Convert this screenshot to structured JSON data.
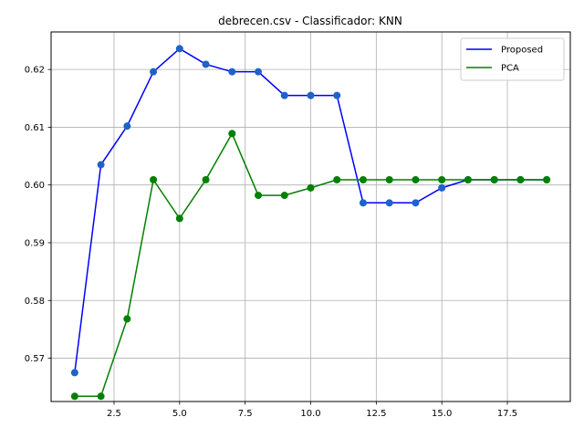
{
  "chart_data": {
    "type": "line",
    "title": "debrecen.csv - Classificador: KNN",
    "xlabel": "",
    "ylabel": "",
    "xlim": [
      0.1,
      19.9
    ],
    "ylim": [
      0.5625,
      0.6265
    ],
    "x_ticks": [
      2.5,
      5.0,
      7.5,
      10.0,
      12.5,
      15.0,
      17.5
    ],
    "x_tick_labels": [
      "2.5",
      "5.0",
      "7.5",
      "10.0",
      "12.5",
      "15.0",
      "17.5"
    ],
    "y_ticks": [
      0.57,
      0.58,
      0.59,
      0.6,
      0.61,
      0.62
    ],
    "y_tick_labels": [
      "0.57",
      "0.58",
      "0.59",
      "0.60",
      "0.61",
      "0.62"
    ],
    "grid": true,
    "legend_position": "top-right",
    "x": [
      1,
      2,
      3,
      4,
      5,
      6,
      7,
      8,
      9,
      10,
      11,
      12,
      13,
      14,
      15,
      16,
      17,
      18,
      19
    ],
    "series": [
      {
        "name": "Proposed",
        "color": "#0000ff",
        "marker_color": "#1f62c8",
        "values": [
          0.5675,
          0.6035,
          0.6102,
          0.6196,
          0.6236,
          0.6209,
          0.6196,
          0.6196,
          0.6155,
          0.6155,
          0.6155,
          0.5969,
          0.5969,
          0.5969,
          0.5995,
          0.6009,
          0.6009,
          0.6009,
          0.6009
        ]
      },
      {
        "name": "PCA",
        "color": "#008000",
        "marker_color": "#008000",
        "values": [
          0.5634,
          0.5634,
          0.5768,
          0.6009,
          0.5942,
          0.6009,
          0.6089,
          0.5982,
          0.5982,
          0.5995,
          0.6009,
          0.6009,
          0.6009,
          0.6009,
          0.6009,
          0.6009,
          0.6009,
          0.6009,
          0.6009
        ]
      }
    ]
  }
}
